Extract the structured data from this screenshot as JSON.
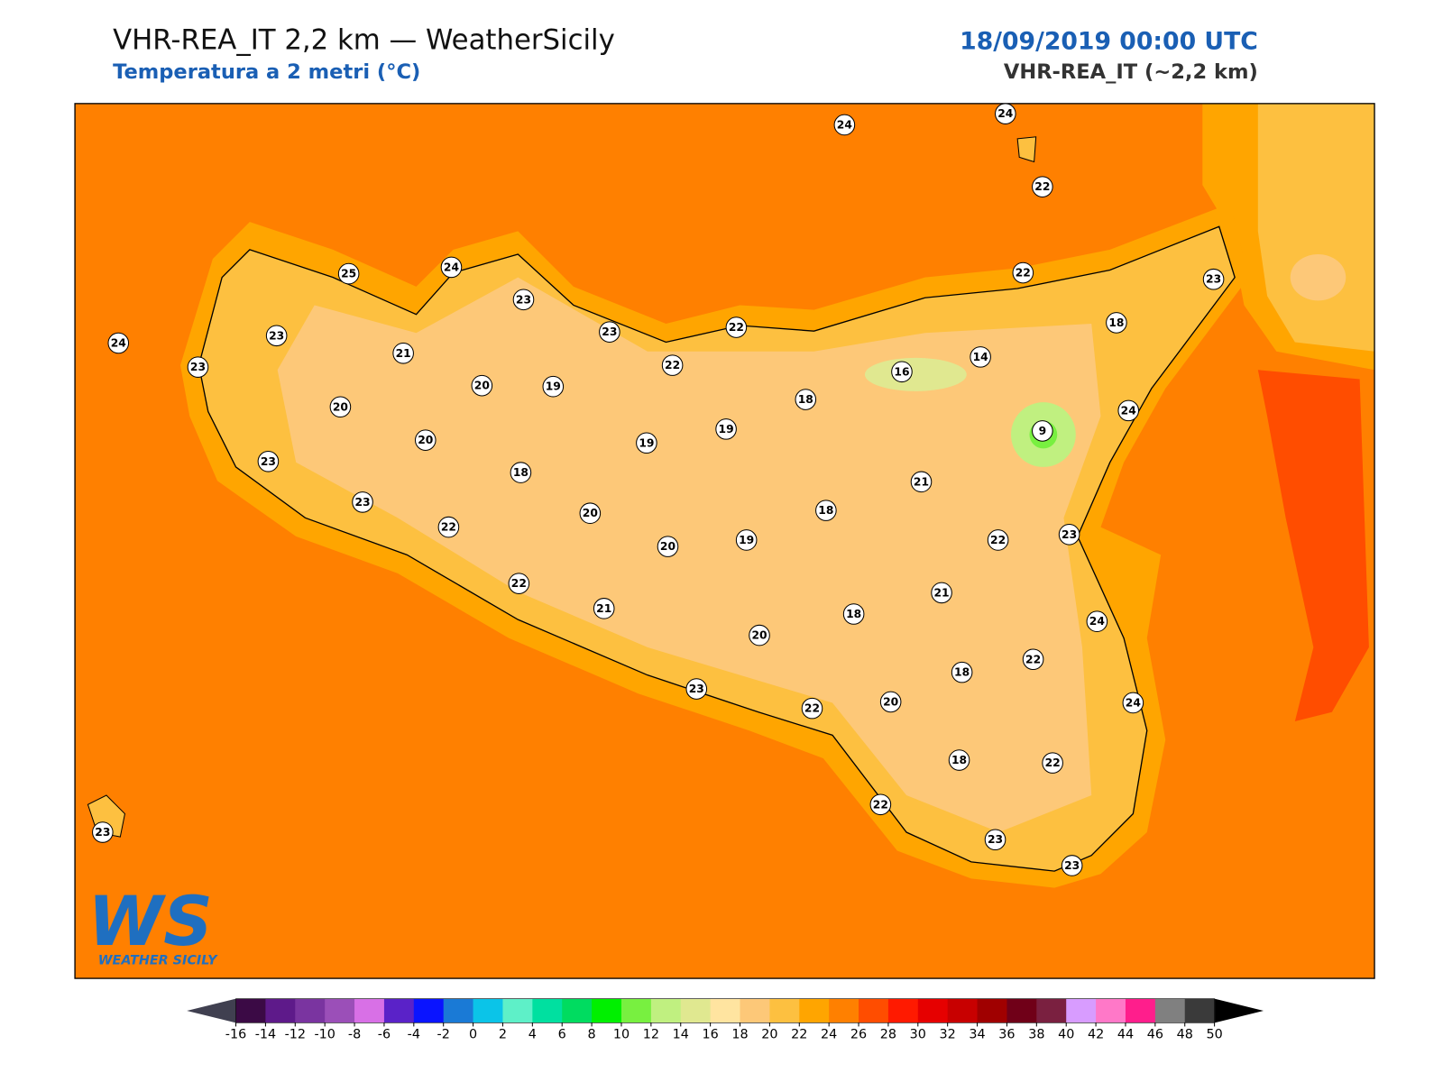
{
  "header": {
    "title": "VHR-REA_IT 2,2 km — WeatherSicily",
    "subtitle": "Temperatura a 2 metri (°C)",
    "date": "18/09/2019 00:00 UTC",
    "model": "VHR-REA_IT (~2,2 km)"
  },
  "stations": [
    24,
    24,
    22,
    25,
    24,
    23,
    23,
    22,
    22,
    23,
    24,
    23,
    23,
    21,
    20,
    19,
    22,
    18,
    16,
    14,
    18,
    20,
    20,
    19,
    19,
    9,
    24,
    23,
    18,
    21,
    23,
    20,
    18,
    22,
    20,
    19,
    22,
    23,
    22,
    21,
    21,
    18,
    24,
    20,
    22,
    18,
    23,
    22,
    20,
    24,
    18,
    22,
    22,
    23,
    23,
    23
  ],
  "colorbar": {
    "ticks": [
      -16,
      -14,
      -12,
      -10,
      -8,
      -6,
      -4,
      -2,
      0,
      2,
      4,
      6,
      8,
      10,
      12,
      14,
      16,
      18,
      20,
      22,
      24,
      26,
      28,
      30,
      32,
      34,
      36,
      38,
      40,
      42,
      44,
      46,
      48,
      50
    ],
    "colors": [
      "#3b0a45",
      "#5e1a8a",
      "#7a34a0",
      "#9b4fb8",
      "#d870e6",
      "#5a22c8",
      "#0a14ff",
      "#1a7ad6",
      "#0bc4e8",
      "#5ef0c8",
      "#00e0a0",
      "#00dc60",
      "#00f000",
      "#78f040",
      "#c0f080",
      "#e0e890",
      "#ffe4a0",
      "#fdc878",
      "#fdc040",
      "#ffa500",
      "#ff8000",
      "#ff4d00",
      "#ff1a00",
      "#e60000",
      "#c80000",
      "#a00000",
      "#700018",
      "#7a2040",
      "#d89cff",
      "#ff78c8",
      "#ff1e8c",
      "#808080",
      "#3a3a3a"
    ],
    "under_color": "#404050",
    "over_color": "#000000"
  },
  "logo": {
    "initials": "WS",
    "name": "WEATHER SICILY"
  }
}
